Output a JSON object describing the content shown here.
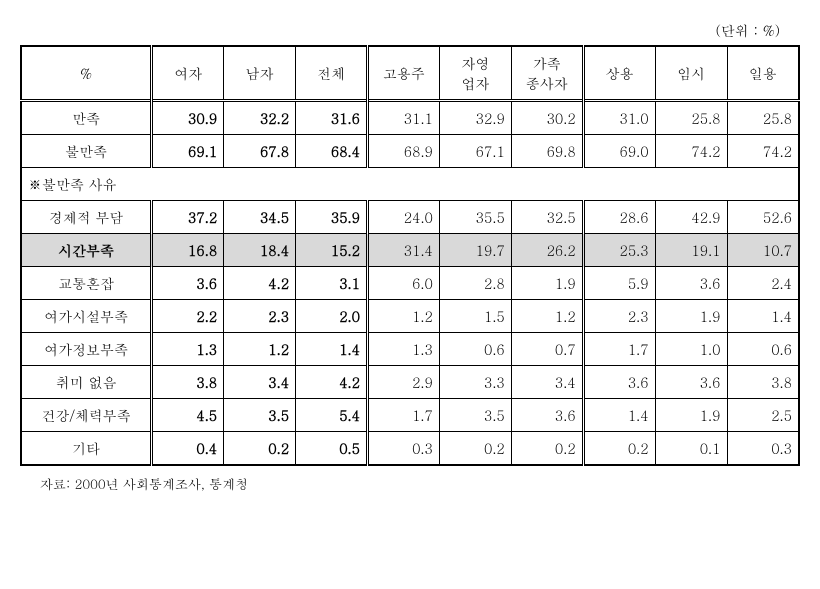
{
  "unit_label": "(단위 : %)",
  "headers": {
    "percent": "%",
    "female": "여자",
    "male": "남자",
    "total": "전체",
    "employer": "고용주",
    "self_employed": "자영\n업자",
    "family_worker": "가족\n종사자",
    "regular": "상용",
    "temporary": "임시",
    "daily": "일용"
  },
  "rows": [
    {
      "label": "만족",
      "values": [
        "30.9",
        "32.2",
        "31.6",
        "31.1",
        "32.9",
        "30.2",
        "31.0",
        "25.8",
        "25.8"
      ],
      "bold_first3": true
    },
    {
      "label": "불만족",
      "values": [
        "69.1",
        "67.8",
        "68.4",
        "68.9",
        "67.1",
        "69.8",
        "69.0",
        "74.2",
        "74.2"
      ],
      "bold_first3": true
    }
  ],
  "section_label": "※불만족 사유",
  "reason_rows": [
    {
      "label": "경제적 부담",
      "values": [
        "37.2",
        "34.5",
        "35.9",
        "24.0",
        "35.5",
        "32.5",
        "28.6",
        "42.9",
        "52.6"
      ],
      "bold_first3": true,
      "highlight": false
    },
    {
      "label": "시간부족",
      "values": [
        "16.8",
        "18.4",
        "15.2",
        "31.4",
        "19.7",
        "26.2",
        "25.3",
        "19.1",
        "10.7"
      ],
      "bold_first3": true,
      "highlight": true
    },
    {
      "label": "교통혼잡",
      "values": [
        "3.6",
        "4.2",
        "3.1",
        "6.0",
        "2.8",
        "1.9",
        "5.9",
        "3.6",
        "2.4"
      ],
      "bold_first3": true,
      "highlight": false
    },
    {
      "label": "여가시설부족",
      "values": [
        "2.2",
        "2.3",
        "2.0",
        "1.2",
        "1.5",
        "1.2",
        "2.3",
        "1.9",
        "1.4"
      ],
      "bold_first3": true,
      "highlight": false
    },
    {
      "label": "여가정보부족",
      "values": [
        "1.3",
        "1.2",
        "1.4",
        "1.3",
        "0.6",
        "0.7",
        "1.7",
        "1.0",
        "0.6"
      ],
      "bold_first3": true,
      "highlight": false
    },
    {
      "label": "취미 없음",
      "values": [
        "3.8",
        "3.4",
        "4.2",
        "2.9",
        "3.3",
        "3.4",
        "3.6",
        "3.6",
        "3.8"
      ],
      "bold_first3": true,
      "highlight": false
    },
    {
      "label": "건강/체력부족",
      "values": [
        "4.5",
        "3.5",
        "5.4",
        "1.7",
        "3.5",
        "3.6",
        "1.4",
        "1.9",
        "2.5"
      ],
      "bold_first3": true,
      "highlight": false
    },
    {
      "label": "기타",
      "values": [
        "0.4",
        "0.2",
        "0.5",
        "0.3",
        "0.2",
        "0.2",
        "0.2",
        "0.1",
        "0.3"
      ],
      "bold_first3": true,
      "highlight": false
    }
  ],
  "source": "자료: 2000년 사회통계조사, 통계청"
}
